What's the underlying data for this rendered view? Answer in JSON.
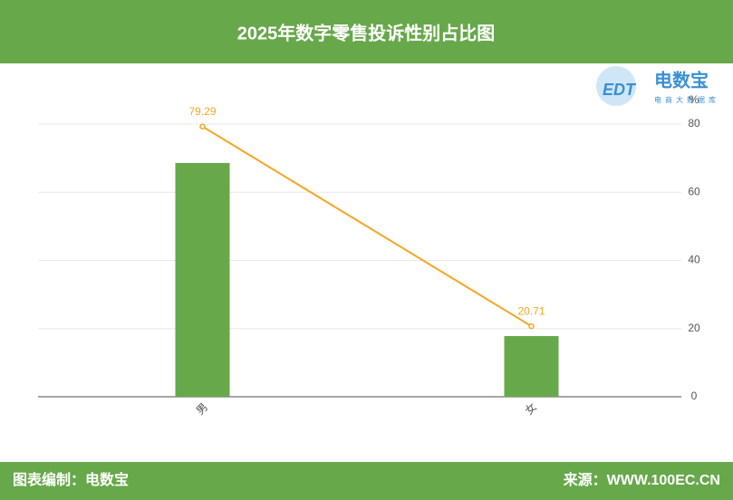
{
  "chart_data": {
    "type": "bar",
    "title": "2025年数字零售投诉性别占比图",
    "categories": [
      "男",
      "女"
    ],
    "series": [
      {
        "type": "bar",
        "color": "#67a84b",
        "values": [
          68.6,
          17.8
        ]
      },
      {
        "type": "line",
        "color": "#f5a623",
        "values": [
          79.29,
          20.71
        ]
      }
    ],
    "ylim": [
      0,
      80
    ],
    "yticks": [
      0,
      20,
      40,
      60,
      80
    ],
    "y_unit": "%",
    "grid": true
  },
  "logo": {
    "mark": "EDT",
    "name": "电数宝",
    "tagline": "电商大数据库"
  },
  "footer": {
    "credit": "图表编制：电数宝",
    "source": "来源：WWW.100EC.CN"
  }
}
